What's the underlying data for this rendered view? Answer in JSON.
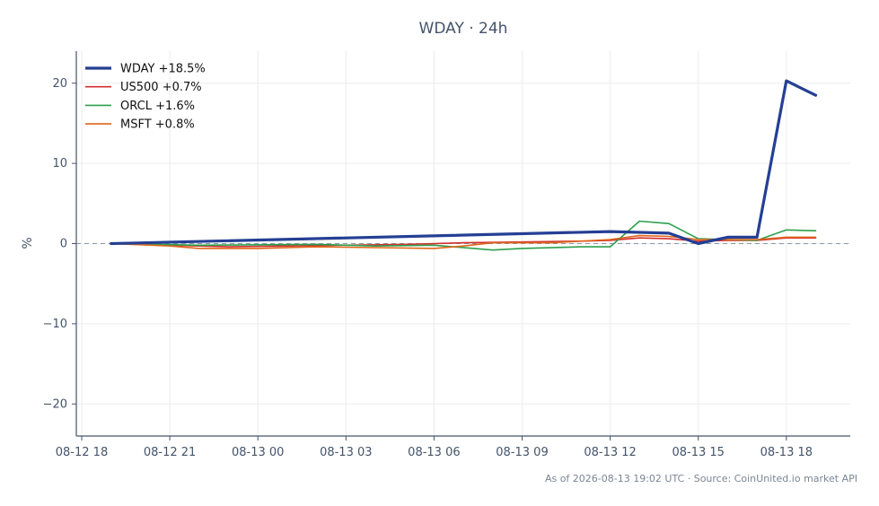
{
  "chart_data": {
    "type": "line",
    "title": "WDAY · 24h",
    "ylabel": "%",
    "xlabel": "",
    "ylim": [
      -24,
      24
    ],
    "yticks": [
      20,
      10,
      0,
      -10,
      -20
    ],
    "ytick_labels": [
      "20",
      "10",
      "0",
      "−10",
      "−20"
    ],
    "xticks": [
      {
        "h": 0,
        "label": "08-12 18"
      },
      {
        "h": 3,
        "label": "08-12 21"
      },
      {
        "h": 6,
        "label": "08-13 00"
      },
      {
        "h": 9,
        "label": "08-13 03"
      },
      {
        "h": 12,
        "label": "08-13 06"
      },
      {
        "h": 15,
        "label": "08-13 09"
      },
      {
        "h": 18,
        "label": "08-13 12"
      },
      {
        "h": 21,
        "label": "08-13 15"
      },
      {
        "h": 24,
        "label": "08-13 18"
      }
    ],
    "xlim": [
      0,
      26.2
    ],
    "grid": true,
    "zero_line": true,
    "legend": "top-left",
    "series": [
      {
        "name": "WDAY +18.5%",
        "color": "#243f94",
        "width": 3.2,
        "points": [
          [
            1,
            0
          ],
          [
            18,
            1.5
          ],
          [
            20,
            1.3
          ],
          [
            21,
            0
          ],
          [
            22,
            0.8
          ],
          [
            23,
            0.8
          ],
          [
            24,
            20.3
          ],
          [
            25,
            18.5
          ]
        ]
      },
      {
        "name": "US500 +0.7%",
        "color": "#d32f2f",
        "width": 1.6,
        "points": [
          [
            1,
            0
          ],
          [
            3,
            -0.2
          ],
          [
            5,
            -0.4
          ],
          [
            7,
            -0.3
          ],
          [
            9,
            -0.2
          ],
          [
            11,
            -0.1
          ],
          [
            13,
            0.1
          ],
          [
            15,
            0.2
          ],
          [
            17,
            0.3
          ],
          [
            18,
            0.4
          ],
          [
            19,
            0.7
          ],
          [
            20,
            0.6
          ],
          [
            21,
            0.3
          ],
          [
            22,
            0.4
          ],
          [
            23,
            0.4
          ],
          [
            24,
            0.7
          ],
          [
            25,
            0.7
          ]
        ]
      },
      {
        "name": "ORCL +1.6%",
        "color": "#2ca04c",
        "width": 1.6,
        "points": [
          [
            1,
            0
          ],
          [
            4,
            -0.2
          ],
          [
            8,
            -0.1
          ],
          [
            10,
            -0.3
          ],
          [
            12,
            -0.2
          ],
          [
            14,
            -0.8
          ],
          [
            15,
            -0.6
          ],
          [
            17,
            -0.4
          ],
          [
            18,
            -0.4
          ],
          [
            19,
            2.8
          ],
          [
            20,
            2.5
          ],
          [
            21,
            0.6
          ],
          [
            22,
            0.5
          ],
          [
            23,
            0.4
          ],
          [
            24,
            1.7
          ],
          [
            25,
            1.6
          ]
        ]
      },
      {
        "name": "MSFT +0.8%",
        "color": "#e0651a",
        "width": 1.6,
        "points": [
          [
            1,
            0
          ],
          [
            3,
            -0.3
          ],
          [
            4,
            -0.6
          ],
          [
            6,
            -0.6
          ],
          [
            8,
            -0.4
          ],
          [
            10,
            -0.5
          ],
          [
            12,
            -0.6
          ],
          [
            13,
            -0.3
          ],
          [
            14,
            0.1
          ],
          [
            16,
            0.1
          ],
          [
            18,
            0.5
          ],
          [
            19,
            1.0
          ],
          [
            20,
            0.9
          ],
          [
            21,
            0.5
          ],
          [
            22,
            0.5
          ],
          [
            23,
            0.5
          ],
          [
            24,
            0.8
          ],
          [
            25,
            0.8
          ]
        ]
      }
    ]
  },
  "footer": "As of 2026-08-13 19:02 UTC · Source: CoinUnited.io market API",
  "colors": {
    "axis": "#44546a",
    "grid": "#ececec",
    "zero_line": "#8a96a8"
  }
}
